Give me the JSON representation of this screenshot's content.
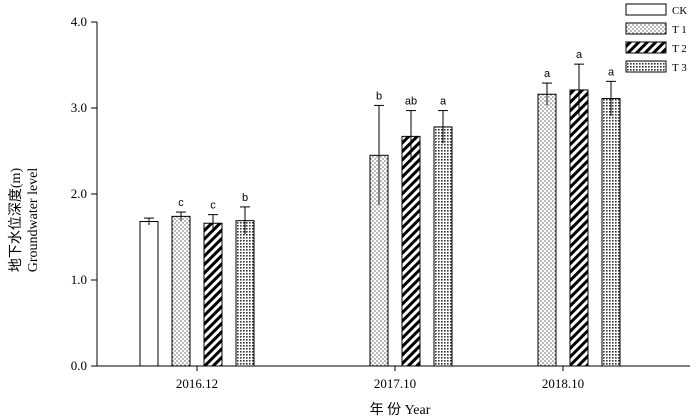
{
  "chart_data": {
    "type": "bar",
    "categories": [
      "2016.12",
      "2017.10",
      "2018.10"
    ],
    "series": [
      {
        "name": "CK",
        "values": [
          1.68,
          null,
          null
        ],
        "errors": [
          0.04,
          null,
          null
        ],
        "letters": [
          "",
          "",
          ""
        ],
        "pattern": "white"
      },
      {
        "name": "T 1",
        "values": [
          1.74,
          2.45,
          3.16
        ],
        "errors": [
          0.05,
          0.58,
          0.13
        ],
        "letters": [
          "c",
          "b",
          "a"
        ],
        "pattern": "dots"
      },
      {
        "name": "T 2",
        "values": [
          1.66,
          2.67,
          3.21
        ],
        "errors": [
          0.1,
          0.3,
          0.3
        ],
        "letters": [
          "c",
          "ab",
          "a"
        ],
        "pattern": "hatch"
      },
      {
        "name": "T 3",
        "values": [
          1.69,
          2.78,
          3.11
        ],
        "errors": [
          0.16,
          0.19,
          0.2
        ],
        "letters": [
          "b",
          "a",
          "a"
        ],
        "pattern": "grid"
      }
    ],
    "xlabel": "年 份 Year",
    "ylabel_cn": "地下水位深度(m)",
    "ylabel_en": "Groundwater level",
    "yticks": [
      "0.0",
      "1.0",
      "2.0",
      "3.0",
      "4.0"
    ],
    "ylim": [
      0,
      4
    ],
    "legend_position": "top-right",
    "grid": false
  }
}
